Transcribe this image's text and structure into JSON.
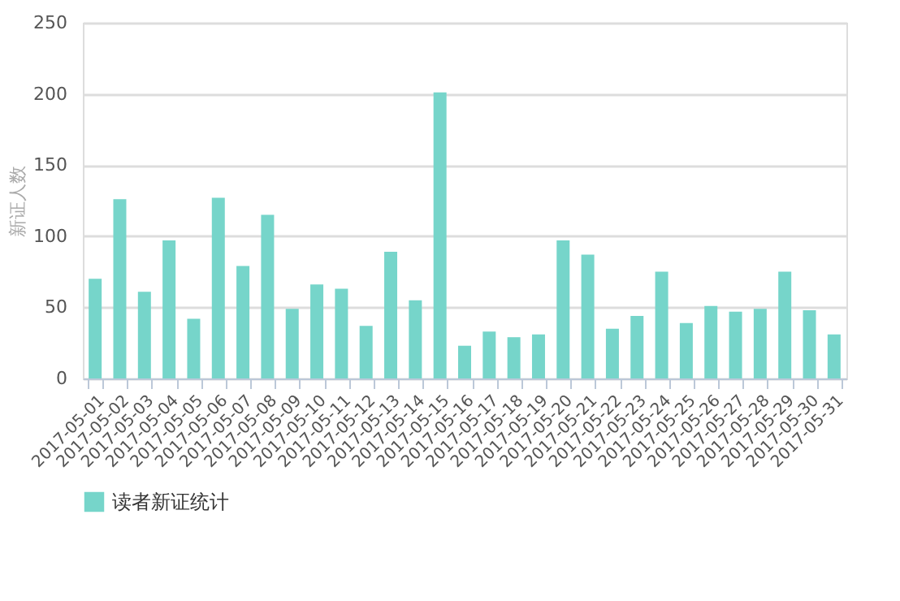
{
  "chart_data": {
    "type": "bar",
    "ylabel": "新证人数",
    "categories": [
      "2017-05-01",
      "2017-05-02",
      "2017-05-03",
      "2017-05-04",
      "2017-05-05",
      "2017-05-06",
      "2017-05-07",
      "2017-05-08",
      "2017-05-09",
      "2017-05-10",
      "2017-05-11",
      "2017-05-12",
      "2017-05-13",
      "2017-05-14",
      "2017-05-15",
      "2017-05-16",
      "2017-05-17",
      "2017-05-18",
      "2017-05-19",
      "2017-05-20",
      "2017-05-21",
      "2017-05-22",
      "2017-05-23",
      "2017-05-24",
      "2017-05-25",
      "2017-05-26",
      "2017-05-27",
      "2017-05-28",
      "2017-05-29",
      "2017-05-30",
      "2017-05-31"
    ],
    "series": [
      {
        "name": "读者新证统计",
        "color": "#76d5ca",
        "values": [
          70,
          126,
          61,
          97,
          42,
          127,
          79,
          115,
          49,
          66,
          63,
          37,
          89,
          55,
          201,
          23,
          33,
          29,
          31,
          97,
          87,
          35,
          44,
          75,
          39,
          51,
          47,
          49,
          75,
          48,
          31
        ]
      }
    ],
    "ylim": [
      0,
      250
    ],
    "yticks": [
      0,
      50,
      100,
      150,
      200,
      250
    ],
    "grid": "y",
    "legend": "bottom"
  }
}
